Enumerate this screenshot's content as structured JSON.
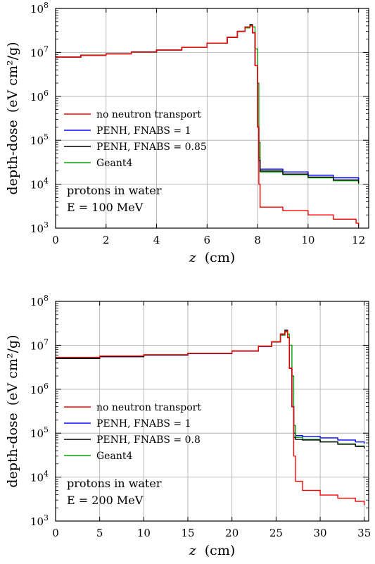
{
  "chart_data": [
    {
      "type": "line",
      "xlabel": "z",
      "xunit": "(cm)",
      "ylabel": "depth-dose",
      "yunit": "(eV cm²/g)",
      "log_y": true,
      "xlim": [
        0,
        12.4
      ],
      "ylim": [
        1000,
        100000000
      ],
      "xticks": [
        0,
        2,
        4,
        6,
        8,
        10,
        12
      ],
      "yticks": [
        {
          "base": "10",
          "exp": "3",
          "value": 1000
        },
        {
          "base": "10",
          "exp": "4",
          "value": 10000
        },
        {
          "base": "10",
          "exp": "5",
          "value": 100000
        },
        {
          "base": "10",
          "exp": "6",
          "value": 1000000
        },
        {
          "base": "10",
          "exp": "7",
          "value": 10000000
        },
        {
          "base": "10",
          "exp": "8",
          "value": 100000000
        }
      ],
      "grid": true,
      "legend_position": "center-left",
      "annotation": {
        "line1": "protons in water",
        "line2": "E = 100 MeV"
      },
      "series": [
        {
          "name": "no neutron transport",
          "color": "#ff0000",
          "x": [
            0,
            1,
            2,
            3,
            4,
            5,
            6,
            6.8,
            7.2,
            7.5,
            7.7,
            7.8,
            7.9,
            8.0,
            8.05,
            8.1,
            9,
            10,
            11,
            11.9,
            12
          ],
          "y": [
            7800000,
            8600000,
            9300000,
            10200000,
            11300000,
            13000000,
            16300000,
            22000000,
            30000000,
            38000000,
            40000000,
            28000000,
            5000000,
            200000,
            10000,
            3000,
            2500,
            2000,
            1600,
            1300,
            1100
          ]
        },
        {
          "name": "PENH, FNABS = 1",
          "color": "#0000ff",
          "x": [
            0,
            1,
            2,
            3,
            4,
            5,
            6,
            6.8,
            7.2,
            7.5,
            7.7,
            7.8,
            7.9,
            8.0,
            8.05,
            8.1,
            9,
            10,
            11,
            12
          ],
          "y": [
            7800000,
            8600000,
            9300000,
            10200000,
            11300000,
            13000000,
            16300000,
            22000000,
            30000000,
            38000000,
            40000000,
            28000000,
            5000000,
            200000,
            40000,
            22000,
            19000,
            16000,
            14000,
            12000
          ]
        },
        {
          "name": "PENH, FNABS = 0.85",
          "color": "#000000",
          "x": [
            0,
            1,
            2,
            3,
            4,
            5,
            6,
            6.8,
            7.2,
            7.5,
            7.7,
            7.8,
            7.9,
            8.0,
            8.05,
            8.1,
            9,
            10,
            11,
            12
          ],
          "y": [
            7800000,
            8600000,
            9300000,
            10200000,
            11300000,
            13000000,
            16300000,
            22000000,
            30000000,
            38000000,
            43000000,
            28000000,
            5000000,
            200000,
            35000,
            20000,
            17000,
            14500,
            12500,
            10500
          ]
        },
        {
          "name": "Geant4",
          "color": "#00a000",
          "x": [
            0,
            1,
            2,
            3,
            4,
            5,
            6,
            6.8,
            7.2,
            7.5,
            7.7,
            7.8,
            7.9,
            8.0,
            8.05,
            8.1,
            9,
            10,
            11,
            12
          ],
          "y": [
            7800000,
            8600000,
            9300000,
            10200000,
            11300000,
            13000000,
            16300000,
            22000000,
            30000000,
            36000000,
            42000000,
            38000000,
            12000000,
            2000000,
            90000,
            19000,
            16500,
            14000,
            12000,
            10000
          ]
        }
      ]
    },
    {
      "type": "line",
      "xlabel": "z",
      "xunit": "(cm)",
      "ylabel": "depth-dose",
      "yunit": "(eV cm²/g)",
      "log_y": true,
      "xlim": [
        0,
        35.5
      ],
      "ylim": [
        1000,
        100000000
      ],
      "xticks": [
        0,
        5,
        10,
        15,
        20,
        25,
        30,
        35
      ],
      "yticks": [
        {
          "base": "10",
          "exp": "3",
          "value": 1000
        },
        {
          "base": "10",
          "exp": "4",
          "value": 10000
        },
        {
          "base": "10",
          "exp": "5",
          "value": 100000
        },
        {
          "base": "10",
          "exp": "6",
          "value": 1000000
        },
        {
          "base": "10",
          "exp": "7",
          "value": 10000000
        },
        {
          "base": "10",
          "exp": "8",
          "value": 100000000
        }
      ],
      "grid": true,
      "legend_position": "center-left",
      "annotation": {
        "line1": "protons in water",
        "line2": "E = 200 MeV"
      },
      "series": [
        {
          "name": "no neutron transport",
          "color": "#ff0000",
          "x": [
            0,
            5,
            10,
            15,
            20,
            23,
            24.5,
            25.5,
            26,
            26.3,
            26.5,
            26.8,
            27.0,
            27.2,
            28,
            30,
            32,
            34,
            35
          ],
          "y": [
            5300000,
            5700000,
            6100000,
            6600000,
            7500000,
            9500000,
            12000000,
            18000000,
            21000000,
            15000000,
            3000000,
            400000,
            30000,
            8000,
            5000,
            3900,
            3300,
            2800,
            2300
          ]
        },
        {
          "name": "PENH, FNABS = 1",
          "color": "#0000ff",
          "x": [
            0,
            5,
            10,
            15,
            20,
            23,
            24.5,
            25.5,
            26,
            26.3,
            26.5,
            26.8,
            27.0,
            27.2,
            28,
            30,
            32,
            34,
            35
          ],
          "y": [
            5000000,
            5500000,
            6000000,
            6500000,
            7400000,
            9400000,
            12000000,
            18000000,
            21000000,
            15000000,
            3000000,
            400000,
            100000,
            88000,
            84000,
            78000,
            70000,
            63000,
            58000
          ]
        },
        {
          "name": "PENH, FNABS = 0.8",
          "color": "#000000",
          "x": [
            0,
            5,
            10,
            15,
            20,
            23,
            24.5,
            25.5,
            26,
            26.3,
            26.5,
            26.8,
            27.0,
            27.2,
            28,
            30,
            32,
            34,
            35
          ],
          "y": [
            5000000,
            5500000,
            6000000,
            6500000,
            7400000,
            9400000,
            12000000,
            18000000,
            22000000,
            15000000,
            3000000,
            400000,
            80000,
            72000,
            70000,
            63000,
            56000,
            50000,
            45000
          ]
        },
        {
          "name": "Geant4",
          "color": "#00a000",
          "x": [
            0,
            5,
            10,
            15,
            20,
            23,
            24.5,
            25.5,
            26,
            26.3,
            26.5,
            26.8,
            27.0,
            27.2,
            28,
            30,
            32,
            34,
            35
          ],
          "y": [
            5200000,
            5600000,
            6100000,
            6600000,
            7500000,
            9500000,
            12000000,
            17000000,
            20000000,
            18000000,
            10000000,
            2000000,
            150000,
            80000,
            72000,
            64000,
            57000,
            51000,
            46000
          ]
        }
      ]
    }
  ]
}
